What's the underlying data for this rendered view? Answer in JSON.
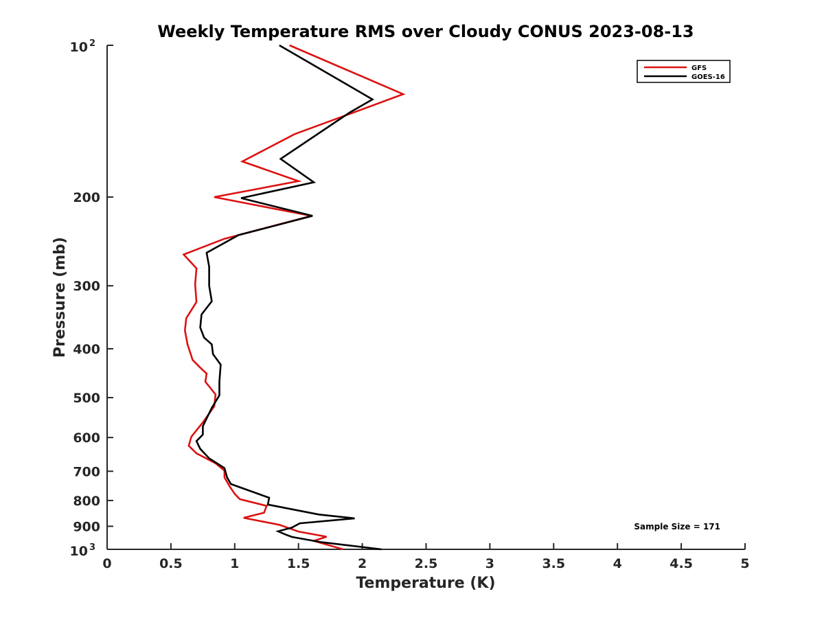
{
  "chart_data": {
    "type": "line",
    "title": "Weekly Temperature RMS over Cloudy CONUS 2023-08-13",
    "xlabel": "Temperature (K)",
    "ylabel": "Pressure (mb)",
    "xlim": [
      0,
      5
    ],
    "ylim": [
      100,
      1000
    ],
    "yscale": "log",
    "yreversed": true,
    "grid": false,
    "legend": "top-right",
    "xticks": [
      0,
      0.5,
      1,
      1.5,
      2,
      2.5,
      3,
      3.5,
      4,
      4.5,
      5
    ],
    "xtick_labels": [
      "0",
      "0.5",
      "1",
      "1.5",
      "2",
      "2.5",
      "3",
      "3.5",
      "4",
      "4.5",
      "5"
    ],
    "yticks": [
      100,
      200,
      300,
      400,
      500,
      600,
      700,
      800,
      900,
      1000
    ],
    "ytick_labels": [
      "",
      "200",
      "300",
      "400",
      "500",
      "600",
      "700",
      "800",
      "900",
      ""
    ],
    "ytick_special": [
      {
        "value": 100,
        "base": "10",
        "exp": "2"
      },
      {
        "value": 1000,
        "base": "10",
        "exp": "3"
      }
    ],
    "series": [
      {
        "name": "GFS",
        "color": "#dd1111",
        "points": [
          [
            1.43,
            100
          ],
          [
            2.32,
            125
          ],
          [
            1.86,
            138
          ],
          [
            1.47,
            150
          ],
          [
            1.06,
            170
          ],
          [
            1.5,
            186
          ],
          [
            0.84,
            200
          ],
          [
            1.6,
            218
          ],
          [
            0.92,
            242
          ],
          [
            0.6,
            260
          ],
          [
            0.7,
            277
          ],
          [
            0.69,
            298
          ],
          [
            0.7,
            323
          ],
          [
            0.62,
            348
          ],
          [
            0.61,
            368
          ],
          [
            0.63,
            392
          ],
          [
            0.67,
            421
          ],
          [
            0.73,
            436
          ],
          [
            0.78,
            448
          ],
          [
            0.77,
            465
          ],
          [
            0.85,
            493
          ],
          [
            0.84,
            520
          ],
          [
            0.75,
            560
          ],
          [
            0.66,
            598
          ],
          [
            0.64,
            623
          ],
          [
            0.7,
            645
          ],
          [
            0.85,
            675
          ],
          [
            0.92,
            698
          ],
          [
            0.92,
            720
          ],
          [
            0.96,
            750
          ],
          [
            1.0,
            776
          ],
          [
            1.04,
            795
          ],
          [
            1.25,
            820
          ],
          [
            1.23,
            846
          ],
          [
            1.07,
            866
          ],
          [
            1.35,
            894
          ],
          [
            1.5,
            922
          ],
          [
            1.72,
            944
          ],
          [
            1.62,
            962
          ],
          [
            1.85,
            1000
          ]
        ]
      },
      {
        "name": "GOES-16",
        "color": "#000000",
        "points": [
          [
            1.35,
            100
          ],
          [
            2.08,
            128
          ],
          [
            1.9,
            136
          ],
          [
            1.36,
            168
          ],
          [
            1.62,
            187
          ],
          [
            1.05,
            201
          ],
          [
            1.61,
            218
          ],
          [
            1.03,
            238
          ],
          [
            0.78,
            258
          ],
          [
            0.8,
            275
          ],
          [
            0.8,
            300
          ],
          [
            0.82,
            322
          ],
          [
            0.74,
            342
          ],
          [
            0.73,
            363
          ],
          [
            0.76,
            380
          ],
          [
            0.82,
            392
          ],
          [
            0.83,
            410
          ],
          [
            0.89,
            430
          ],
          [
            0.88,
            465
          ],
          [
            0.88,
            495
          ],
          [
            0.82,
            524
          ],
          [
            0.75,
            570
          ],
          [
            0.75,
            592
          ],
          [
            0.7,
            610
          ],
          [
            0.73,
            632
          ],
          [
            0.8,
            660
          ],
          [
            0.92,
            690
          ],
          [
            0.94,
            720
          ],
          [
            0.97,
            742
          ],
          [
            1.27,
            790
          ],
          [
            1.26,
            815
          ],
          [
            1.66,
            853
          ],
          [
            1.94,
            868
          ],
          [
            1.51,
            888
          ],
          [
            1.45,
            905
          ],
          [
            1.34,
            921
          ],
          [
            1.4,
            935
          ],
          [
            1.45,
            945
          ],
          [
            1.68,
            968
          ],
          [
            2.15,
            1000
          ]
        ]
      }
    ],
    "annotation": "Sample Size = 171"
  }
}
